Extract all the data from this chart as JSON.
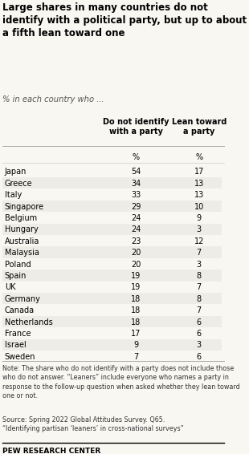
{
  "title": "Large shares in many countries do not identify with a political party, but up to about a fifth lean toward one",
  "subtitle": "% in each country who ...",
  "col1_header": "Do not identify\nwith a party",
  "col2_header": "Lean toward\na party",
  "col_unit": "%",
  "countries": [
    "Japan",
    "Greece",
    "Italy",
    "Singapore",
    "Belgium",
    "Hungary",
    "Australia",
    "Malaysia",
    "Poland",
    "Spain",
    "UK",
    "Germany",
    "Canada",
    "Netherlands",
    "France",
    "Israel",
    "Sweden"
  ],
  "col1_values": [
    54,
    34,
    33,
    29,
    24,
    24,
    23,
    20,
    20,
    19,
    19,
    18,
    18,
    18,
    17,
    9,
    7
  ],
  "col2_values": [
    17,
    13,
    13,
    10,
    9,
    3,
    12,
    7,
    3,
    8,
    7,
    8,
    7,
    6,
    6,
    3,
    6
  ],
  "note": "Note: The share who do not identify with a party does not include those who do not answer. “Leaners” include everyone who names a party in response to the follow-up question when asked whether they lean toward one or not.",
  "source": "Source: Spring 2022 Global Attitudes Survey. Q65.\n“Identifying partisan ‘leaners’ in cross-national surveys”",
  "footer": "PEW RESEARCH CENTER",
  "bg_color": "#f9f7f2",
  "text_color": "#000000",
  "header_line_color": "#000000"
}
